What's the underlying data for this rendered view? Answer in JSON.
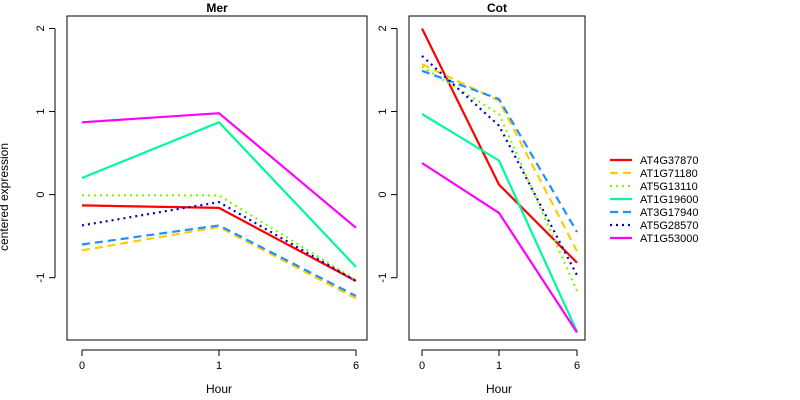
{
  "chart_data": [
    {
      "type": "line",
      "title": "Mer",
      "xlabel": "Hour",
      "ylabel": "centered expression",
      "categories": [
        "0",
        "1",
        "6"
      ],
      "ylim": [
        -1.75,
        2.15
      ],
      "yticks": [
        2,
        1,
        0,
        -1
      ],
      "series": [
        {
          "name": "AT4G37870",
          "values": [
            -0.13,
            -0.16,
            -1.04
          ]
        },
        {
          "name": "AT1G71180",
          "values": [
            -0.67,
            -0.39,
            -1.25
          ]
        },
        {
          "name": "AT5G13110",
          "values": [
            -0.01,
            -0.01,
            -1.03
          ]
        },
        {
          "name": "AT1G19600",
          "values": [
            0.2,
            0.87,
            -0.87
          ]
        },
        {
          "name": "AT3G17940",
          "values": [
            -0.6,
            -0.37,
            -1.22
          ]
        },
        {
          "name": "AT5G28570",
          "values": [
            -0.37,
            -0.09,
            -1.04
          ]
        },
        {
          "name": "AT1G53000",
          "values": [
            0.87,
            0.98,
            -0.4
          ]
        }
      ]
    },
    {
      "type": "line",
      "title": "Cot",
      "xlabel": "Hour",
      "categories": [
        "0",
        "1",
        "6"
      ],
      "ylim": [
        -1.75,
        2.15
      ],
      "yticks": [
        2,
        1,
        0,
        -1
      ],
      "series": [
        {
          "name": "AT4G37870",
          "values": [
            2.0,
            0.12,
            -0.82
          ]
        },
        {
          "name": "AT1G71180",
          "values": [
            1.57,
            1.13,
            -0.68
          ]
        },
        {
          "name": "AT5G13110",
          "values": [
            1.54,
            0.97,
            -1.16
          ]
        },
        {
          "name": "AT1G19600",
          "values": [
            0.97,
            0.41,
            -1.65
          ]
        },
        {
          "name": "AT3G17940",
          "values": [
            1.49,
            1.15,
            -0.45
          ]
        },
        {
          "name": "AT5G28570",
          "values": [
            1.67,
            0.83,
            -0.97
          ]
        },
        {
          "name": "AT1G53000",
          "values": [
            0.38,
            -0.22,
            -1.66
          ]
        }
      ]
    }
  ],
  "legend": {
    "placement": "right",
    "entries": [
      {
        "name": "AT4G37870",
        "color": "#ff0000",
        "dash": "solid"
      },
      {
        "name": "AT1G71180",
        "color": "#ffcd00",
        "dash": "dashed"
      },
      {
        "name": "AT5G13110",
        "color": "#7cfc00",
        "dash": "dotted"
      },
      {
        "name": "AT1G19600",
        "color": "#00fa9a",
        "dash": "solid"
      },
      {
        "name": "AT3G17940",
        "color": "#1e90ff",
        "dash": "dashed"
      },
      {
        "name": "AT5G28570",
        "color": "#0000cd",
        "dash": "dotted"
      },
      {
        "name": "AT1G53000",
        "color": "#ff00ff",
        "dash": "solid"
      }
    ]
  }
}
